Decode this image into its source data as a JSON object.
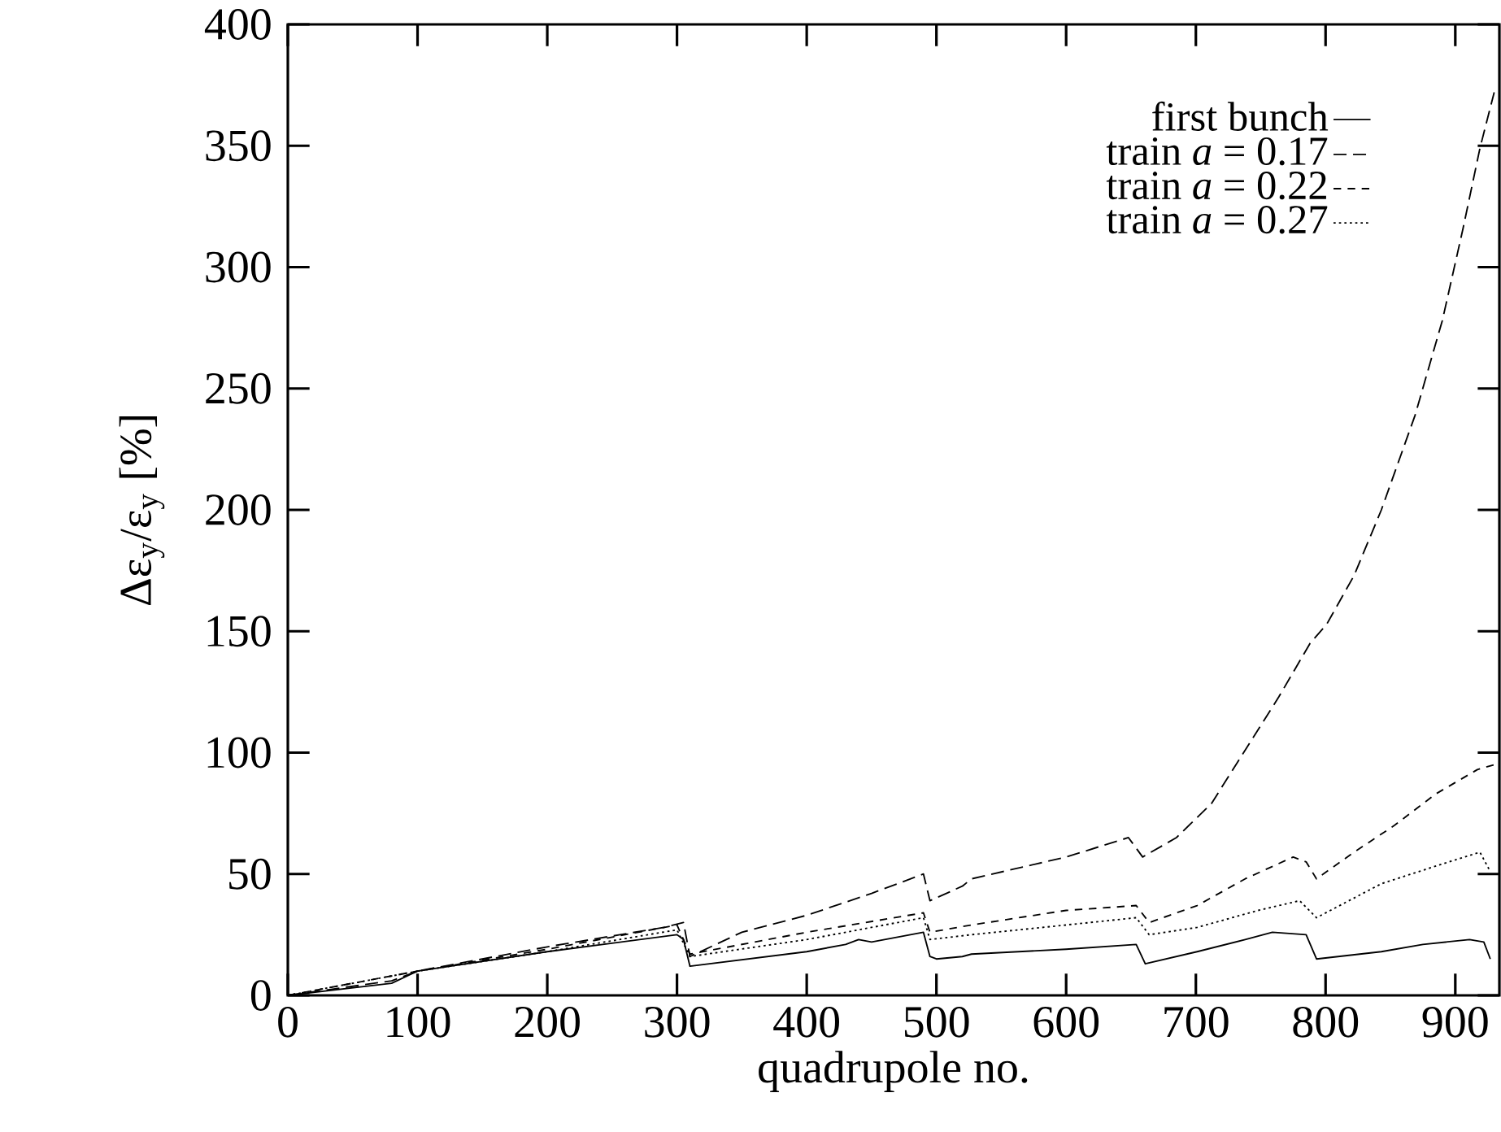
{
  "chart_data": {
    "type": "line",
    "xlabel": "quadrupole no.",
    "ylabel": "Δε$_{y}$/ε$_{y}$ [%]",
    "xlim": [
      0,
      934
    ],
    "ylim": [
      0,
      400
    ],
    "xticks": [
      0,
      100,
      200,
      300,
      400,
      500,
      600,
      700,
      800,
      900
    ],
    "yticks": [
      0,
      50,
      100,
      150,
      200,
      250,
      300,
      350,
      400
    ],
    "legend": "top right",
    "grid": false,
    "marker": "none",
    "series": [
      {
        "name": "first bunch",
        "color": "#000000",
        "line_style": "solid",
        "x": [
          0,
          80,
          100,
          200,
          300,
          305,
          310,
          400,
          430,
          440,
          450,
          490,
          495,
          500,
          520,
          527,
          600,
          654,
          661,
          701,
          738,
          759,
          785,
          793,
          843,
          875,
          911,
          922,
          927
        ],
        "values": [
          0,
          5,
          10,
          18,
          25,
          23,
          12,
          18,
          21,
          23,
          22,
          26,
          16,
          15,
          16,
          17,
          19,
          21,
          13,
          18,
          23,
          26,
          25,
          15,
          18,
          21,
          23,
          22,
          15
        ]
      },
      {
        "name": "train *a* = 0.17",
        "color": "#000000",
        "line_style": "dashed",
        "x": [
          0,
          80,
          100,
          200,
          290,
          305,
          310,
          350,
          400,
          450,
          490,
          495,
          520,
          527,
          600,
          648,
          659,
          685,
          712,
          738,
          764,
          788,
          801,
          822,
          843,
          869,
          890,
          906,
          919,
          930
        ],
        "values": [
          0,
          6,
          10,
          20,
          28,
          30,
          16,
          26,
          33,
          42,
          50,
          39,
          45,
          48,
          57,
          65,
          57,
          65,
          79,
          101,
          123,
          145,
          153,
          173,
          200,
          239,
          278,
          316,
          349,
          372
        ]
      },
      {
        "name": "train *a* = 0.22",
        "color": "#000000",
        "line_style": "dashed",
        "x": [
          0,
          100,
          200,
          300,
          310,
          400,
          490,
          495,
          527,
          600,
          654,
          664,
          701,
          738,
          775,
          785,
          793,
          822,
          853,
          885,
          917,
          930
        ],
        "values": [
          0,
          10,
          19,
          29,
          17,
          26,
          34,
          26,
          29,
          35,
          37,
          30,
          37,
          48,
          57,
          55,
          48,
          59,
          70,
          83,
          93,
          95
        ]
      },
      {
        "name": "train *a* = 0.27",
        "color": "#000000",
        "line_style": "dotted",
        "x": [
          0,
          100,
          200,
          300,
          310,
          400,
          490,
          495,
          527,
          600,
          654,
          664,
          701,
          748,
          780,
          793,
          843,
          895,
          919,
          927
        ],
        "values": [
          0,
          10,
          18,
          27,
          16,
          23,
          32,
          23,
          25,
          29,
          32,
          25,
          28,
          35,
          39,
          32,
          46,
          55,
          59,
          51
        ]
      }
    ]
  }
}
